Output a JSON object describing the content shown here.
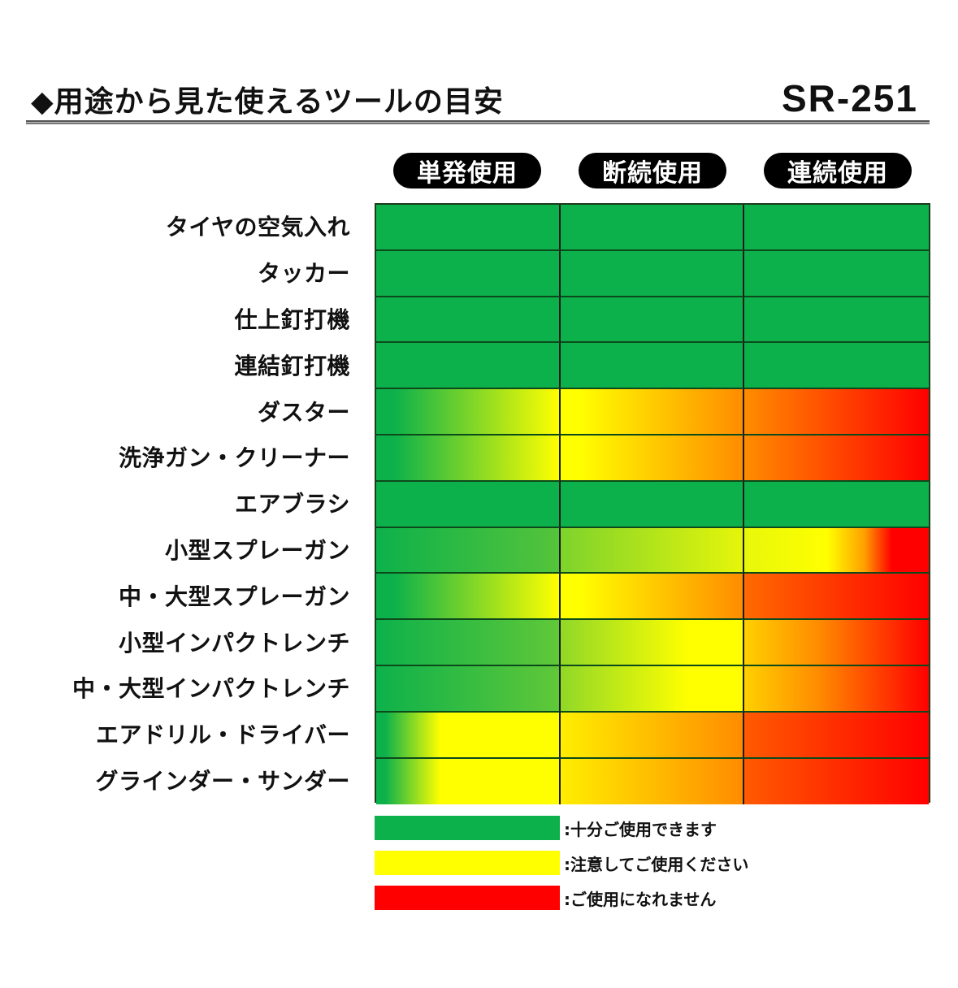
{
  "header": {
    "title": "◆用途から見た使えるツールの目安",
    "model": "SR-251"
  },
  "columns": [
    "単発使用",
    "断続使用",
    "連続使用"
  ],
  "rows": [
    "タイヤの空気入れ",
    "タッカー",
    "仕上釘打機",
    "連結釘打機",
    "ダスター",
    "洗浄ガン・クリーナー",
    "エアブラシ",
    "小型スプレーガン",
    "中・大型スプレーガン",
    "小型インパクトレンチ",
    "中・大型インパクトレンチ",
    "エアドリル・ドライバー",
    "グラインダー・サンダー"
  ],
  "colors": {
    "green": "#0db14b",
    "yellow": "#ffff00",
    "orange": "#ff8c00",
    "red": "#ff0000",
    "border": "#1a1a1a"
  },
  "cell_gradients": [
    [
      "linear-gradient(90deg,#0db14b,#0db14b)",
      "linear-gradient(90deg,#0db14b,#0db14b)",
      "linear-gradient(90deg,#0db14b,#0db14b)"
    ],
    [
      "linear-gradient(90deg,#0db14b,#0db14b)",
      "linear-gradient(90deg,#0db14b,#0db14b)",
      "linear-gradient(90deg,#0db14b,#0db14b)"
    ],
    [
      "linear-gradient(90deg,#0db14b,#0db14b)",
      "linear-gradient(90deg,#0db14b,#0db14b)",
      "linear-gradient(90deg,#0db14b,#0db14b)"
    ],
    [
      "linear-gradient(90deg,#0db14b,#0db14b)",
      "linear-gradient(90deg,#0db14b,#0db14b)",
      "linear-gradient(90deg,#0db14b,#0db14b)"
    ],
    [
      "linear-gradient(90deg,#0db14b 10%,#ffff00 100%)",
      "linear-gradient(90deg,#ffff00 10%,#ff8c00 100%)",
      "linear-gradient(90deg,#ff8c00,#ff0000)"
    ],
    [
      "linear-gradient(90deg,#0db14b 10%,#ffff00 100%)",
      "linear-gradient(90deg,#ffff00 10%,#ff8c00 100%)",
      "linear-gradient(90deg,#ff8c00,#ff0000)"
    ],
    [
      "linear-gradient(90deg,#0db14b,#0db14b)",
      "linear-gradient(90deg,#0db14b,#0db14b)",
      "linear-gradient(90deg,#0db14b,#0db14b)"
    ],
    [
      "linear-gradient(90deg,#0db14b,#55c43a)",
      "linear-gradient(90deg,#7ed32c,#e6f50a)",
      "linear-gradient(90deg,#e8f70a 0%,#ffff00 45%,#ffa000 65%,#ff0000 80%,#ff0000 100%)"
    ],
    [
      "linear-gradient(90deg,#0db14b 10%,#ffff00 100%)",
      "linear-gradient(90deg,#ffff00 10%,#ff8c00 100%)",
      "linear-gradient(90deg,#ff6a00,#ff0000)"
    ],
    [
      "linear-gradient(90deg,#0db14b,#60c838)",
      "linear-gradient(90deg,#90d828 0%,#ffff00 70%,#ffff00 100%)",
      "linear-gradient(90deg,#ffd000 0%,#ff8c00 40%,#ff0000 100%)"
    ],
    [
      "linear-gradient(90deg,#0db14b,#60c838)",
      "linear-gradient(90deg,#90d828 0%,#ffff00 70%,#ffff00 100%)",
      "linear-gradient(90deg,#ffd000 0%,#ff8c00 40%,#ff0000 100%)"
    ],
    [
      "linear-gradient(90deg,#0db14b 5%,#ffff00 35%,#ffff00 100%)",
      "linear-gradient(90deg,#ffee00 0%,#ff8c00 100%)",
      "linear-gradient(90deg,#ff5a00,#ff0000)"
    ],
    [
      "linear-gradient(90deg,#0db14b 5%,#ffff00 35%,#ffff00 100%)",
      "linear-gradient(90deg,#ffee00 0%,#ff8c00 100%)",
      "linear-gradient(90deg,#ff5a00,#ff0000)"
    ]
  ],
  "legend": [
    {
      "color": "#0db14b",
      "label": ":十分ご使用できます"
    },
    {
      "color": "#ffff00",
      "label": ":注意してご使用ください"
    },
    {
      "color": "#ff0000",
      "label": ":ご使用になれません"
    }
  ],
  "chart_data": {
    "type": "heatmap",
    "title": "◆用途から見た使えるツールの目安",
    "subtitle": "SR-251",
    "x": [
      "単発使用",
      "断続使用",
      "連続使用"
    ],
    "y": [
      "タイヤの空気入れ",
      "タッカー",
      "仕上釘打機",
      "連結釘打機",
      "ダスター",
      "洗浄ガン・クリーナー",
      "エアブラシ",
      "小型スプレーガン",
      "中・大型スプレーガン",
      "小型インパクトレンチ",
      "中・大型インパクトレンチ",
      "エアドリル・ドライバー",
      "グラインダー・サンダー"
    ],
    "values": [
      [
        "green",
        "green",
        "green"
      ],
      [
        "green",
        "green",
        "green"
      ],
      [
        "green",
        "green",
        "green"
      ],
      [
        "green",
        "green",
        "green"
      ],
      [
        "green→yellow",
        "yellow→orange",
        "orange→red"
      ],
      [
        "green→yellow",
        "yellow→orange",
        "orange→red"
      ],
      [
        "green",
        "green",
        "green"
      ],
      [
        "green",
        "green→yellow",
        "yellow→red"
      ],
      [
        "green→yellow",
        "yellow→orange",
        "orange→red"
      ],
      [
        "green",
        "green→yellow",
        "yellow→red"
      ],
      [
        "green",
        "green→yellow",
        "yellow→red"
      ],
      [
        "green→yellow",
        "yellow→orange",
        "orange→red"
      ],
      [
        "green→yellow",
        "yellow→orange",
        "orange→red"
      ]
    ],
    "legend": [
      {
        "color": "green",
        "label": "十分ご使用できます"
      },
      {
        "color": "yellow",
        "label": "注意してご使用ください"
      },
      {
        "color": "red",
        "label": "ご使用になれません"
      }
    ],
    "legend_position": "bottom"
  }
}
